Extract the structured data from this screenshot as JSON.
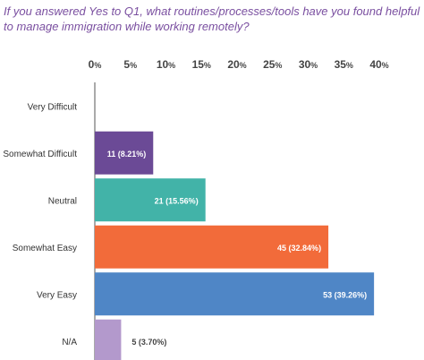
{
  "chart_data": {
    "type": "bar",
    "orientation": "horizontal",
    "title": "If you answered Yes to Q1, what routines/processes/tools have you found helpful to manage immigration while working remotely?",
    "xlim": [
      0,
      40
    ],
    "x_ticks": [
      "0%",
      "5%",
      "10%",
      "15%",
      "20%",
      "25%",
      "30%",
      "35%",
      "40%"
    ],
    "categories": [
      "Very Difficult",
      "Somewhat Difficult",
      "Neutral",
      "Somewhat Easy",
      "Very Easy",
      "N/A"
    ],
    "values": [
      0,
      8.21,
      15.56,
      32.84,
      39.26,
      3.7
    ],
    "data_labels": [
      "",
      "11 (8.21%)",
      "21 (15.56%)",
      "45 (32.84%)",
      "53 (39.26%)",
      "5 (3.70%)"
    ],
    "colors": [
      "#cccccc",
      "#6b4a96",
      "#42b3a8",
      "#f26b3a",
      "#4f86c6",
      "#b399cc"
    ],
    "grid": false
  }
}
